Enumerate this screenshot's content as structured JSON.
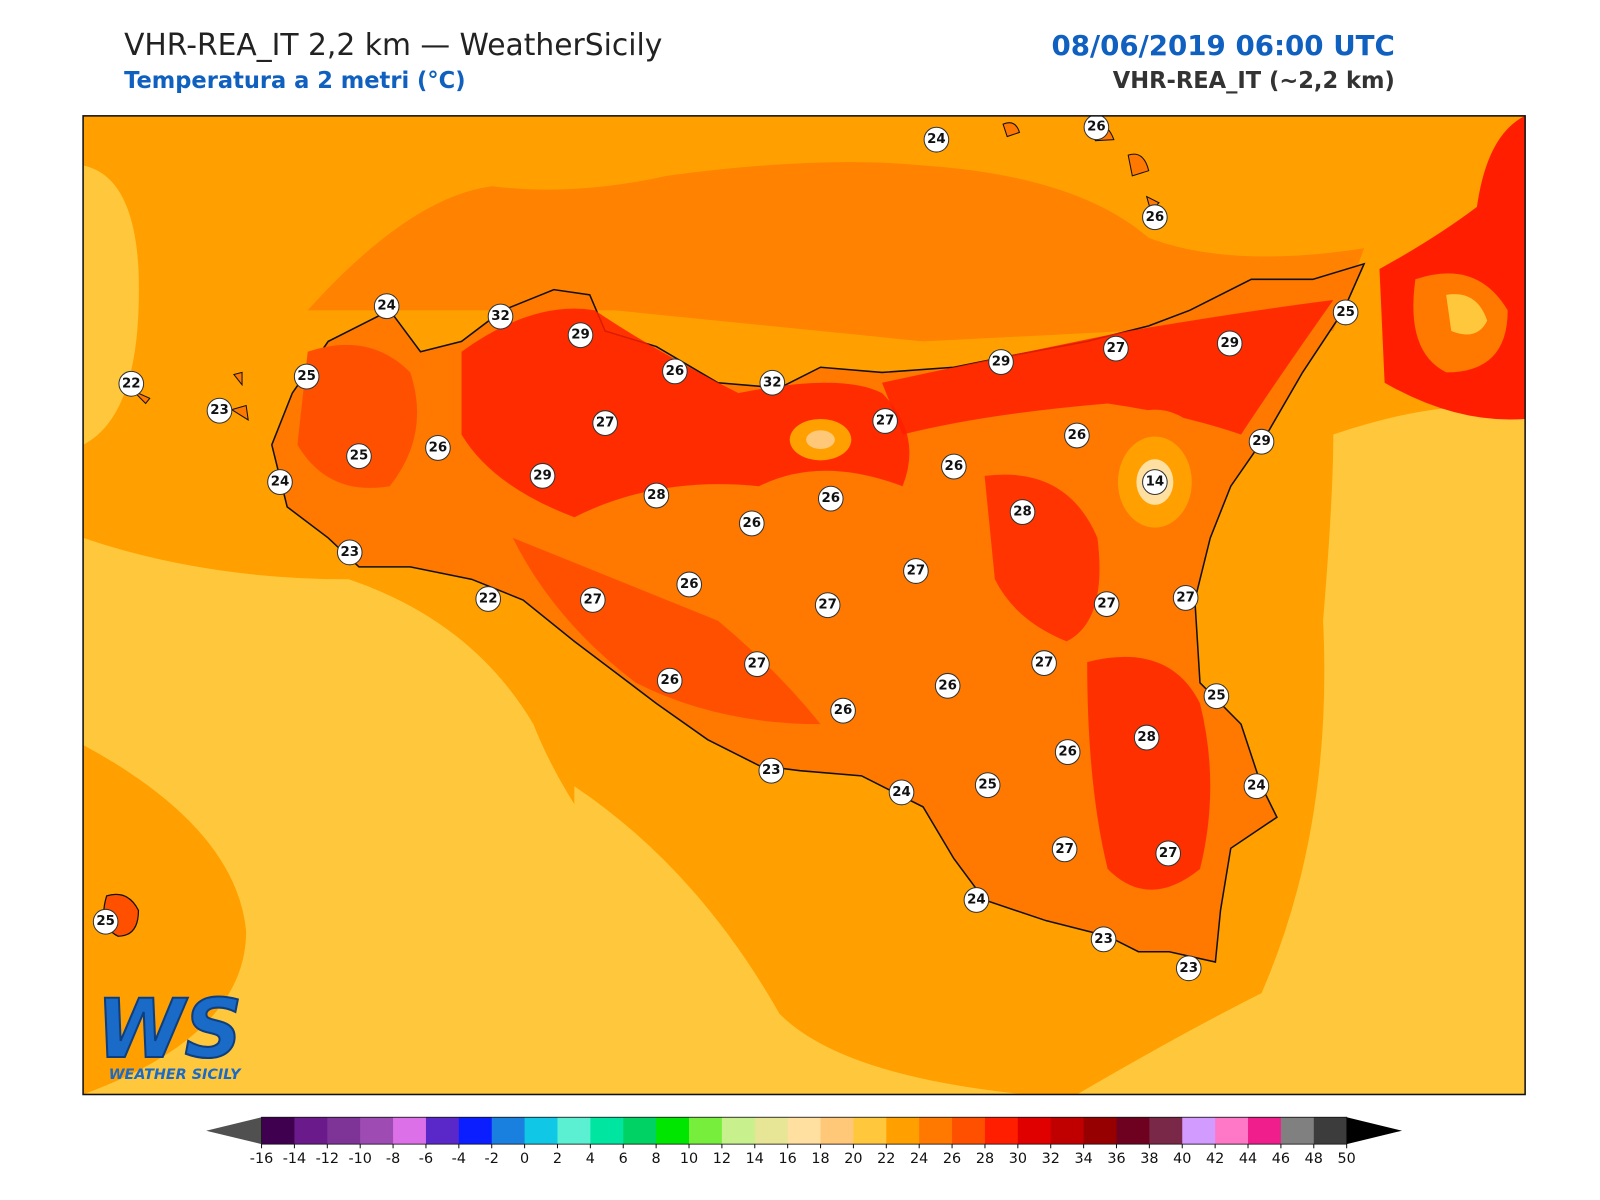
{
  "header": {
    "title": "VHR-REA_IT 2,2 km — WeatherSicily",
    "subtitle": "Temperatura a 2 metri (°C)",
    "datetime": "08/06/2019 06:00 UTC",
    "model": "VHR-REA_IT (~2,2 km)"
  },
  "stations": [
    24,
    26,
    26,
    24,
    32,
    29,
    25,
    22,
    25,
    26,
    32,
    29,
    27,
    29,
    23,
    27,
    27,
    26,
    29,
    25,
    26,
    26,
    24,
    29,
    28,
    26,
    14,
    28,
    26,
    23,
    27,
    22,
    27,
    26,
    27,
    27,
    27,
    27,
    27,
    26,
    26,
    26,
    25,
    28,
    26,
    23,
    24,
    25,
    24,
    27,
    27,
    24,
    25,
    23,
    23
  ],
  "colorbar": {
    "ticks": [
      -16,
      -14,
      -12,
      -10,
      -8,
      -6,
      -4,
      -2,
      0,
      2,
      4,
      6,
      8,
      10,
      12,
      14,
      16,
      18,
      20,
      22,
      24,
      26,
      28,
      30,
      32,
      34,
      36,
      38,
      40,
      42,
      44,
      46,
      48,
      50
    ],
    "colors": [
      "#400050",
      "#6a1a8a",
      "#7e3496",
      "#9e4cb4",
      "#dc70e8",
      "#5a28c8",
      "#0a1eff",
      "#1a80e0",
      "#10c8e6",
      "#5cf0d2",
      "#00e6a0",
      "#00d264",
      "#00e600",
      "#78ee3c",
      "#c8f08c",
      "#e6e696",
      "#ffe0a0",
      "#ffc878",
      "#ffc83c",
      "#ffa000",
      "#ff7800",
      "#ff5000",
      "#ff1e00",
      "#e00000",
      "#c00000",
      "#960000",
      "#6e0020",
      "#7a2848",
      "#d29bff",
      "#ff78c8",
      "#f01e8c",
      "#808080",
      "#3c3c3c"
    ],
    "under": "#505050",
    "over": "#000000"
  },
  "logo": {
    "mark": "WS",
    "text": "WEATHER SICILY"
  }
}
